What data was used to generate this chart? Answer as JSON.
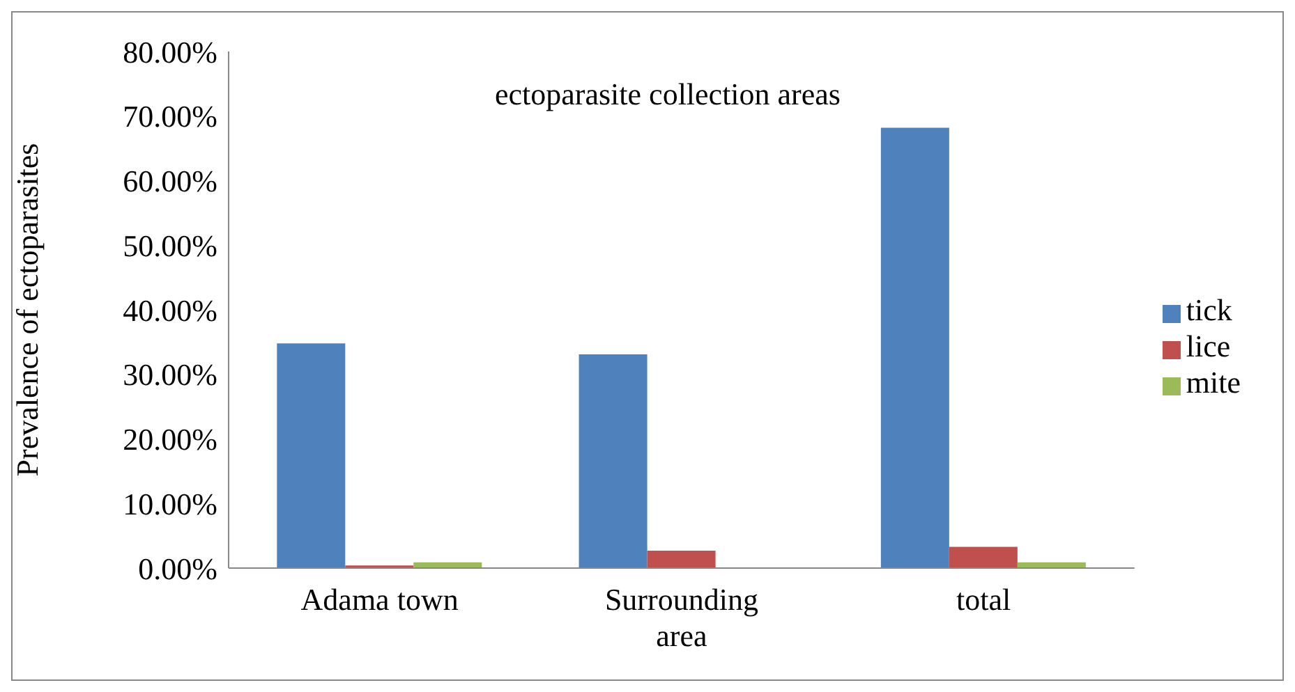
{
  "chart_data": {
    "type": "bar",
    "title": "ectoparasite collection areas",
    "ylabel": "Prevalence  of  ectoparasites",
    "categories": [
      "Adama town",
      "Surrounding area",
      "total"
    ],
    "series": [
      {
        "name": "tick",
        "color": "#4f81bd",
        "values": [
          34.8,
          33.1,
          68.2
        ]
      },
      {
        "name": "lice",
        "color": "#c0504d",
        "values": [
          0.4,
          2.7,
          3.3
        ]
      },
      {
        "name": "mite",
        "color": "#9bbb59",
        "values": [
          0.9,
          0,
          0.9
        ]
      }
    ],
    "ylim": [
      0,
      80
    ],
    "yticks": [
      {
        "value": 0,
        "label": "0.00%"
      },
      {
        "value": 10,
        "label": "10.00%"
      },
      {
        "value": 20,
        "label": "20.00%"
      },
      {
        "value": 30,
        "label": "30.00%"
      },
      {
        "value": 40,
        "label": "40.00%"
      },
      {
        "value": 50,
        "label": "50.00%"
      },
      {
        "value": 60,
        "label": "60.00%"
      },
      {
        "value": 70,
        "label": "70.00%"
      },
      {
        "value": 80,
        "label": "80.00%"
      }
    ],
    "grid": false,
    "legend": "right"
  }
}
